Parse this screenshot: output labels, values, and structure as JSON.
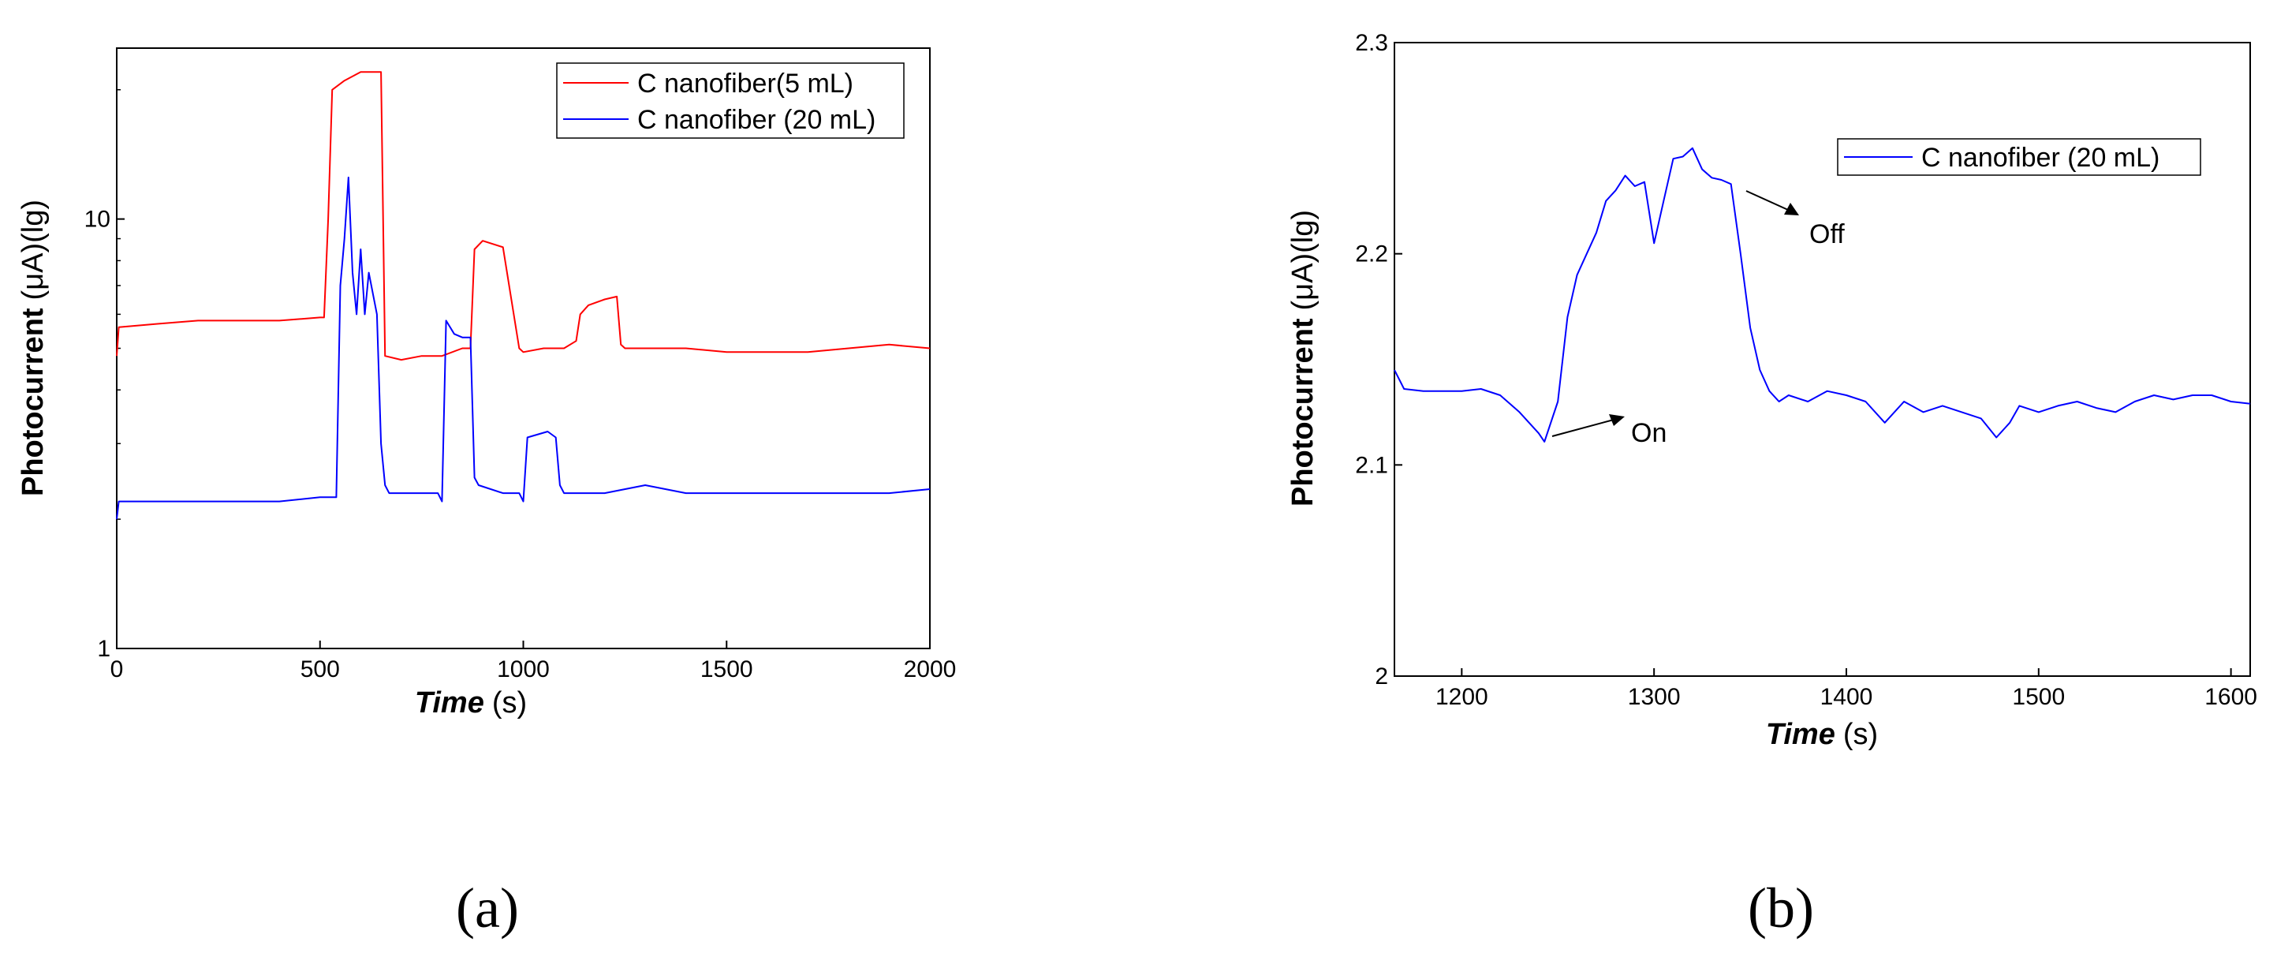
{
  "chart_data": [
    {
      "type": "line",
      "panel_label": "(a)",
      "xlabel": "Time",
      "xunit": "(s)",
      "ylabel": "Photocurrent",
      "yunit": "(μA)(lg)",
      "xlim": [
        0,
        2000
      ],
      "ylim": [
        1,
        25
      ],
      "log_y": true,
      "x_ticks": [
        0,
        500,
        1000,
        1500,
        2000
      ],
      "x_tick_labels": [
        "0",
        "500",
        "1000",
        "1500",
        "2000"
      ],
      "y_ticks": [
        1,
        10
      ],
      "y_tick_labels": [
        "1",
        "10"
      ],
      "legend": "top-right",
      "series": [
        {
          "name": "C nanofiber(5 mL)",
          "color": "#ff0000",
          "x": [
            0,
            5,
            100,
            200,
            300,
            400,
            500,
            510,
            520,
            530,
            560,
            600,
            650,
            660,
            700,
            750,
            800,
            850,
            870,
            880,
            900,
            950,
            990,
            1000,
            1050,
            1100,
            1130,
            1140,
            1160,
            1200,
            1230,
            1240,
            1250,
            1300,
            1400,
            1500,
            1600,
            1700,
            1800,
            1900,
            2000
          ],
          "y": [
            4.8,
            5.6,
            5.7,
            5.8,
            5.8,
            5.8,
            5.9,
            5.9,
            10,
            20,
            21,
            22,
            22,
            4.8,
            4.7,
            4.8,
            4.8,
            5.0,
            5.0,
            8.5,
            8.9,
            8.6,
            5.0,
            4.9,
            5.0,
            5.0,
            5.2,
            6.0,
            6.3,
            6.5,
            6.6,
            5.1,
            5.0,
            5.0,
            5.0,
            4.9,
            4.9,
            4.9,
            5.0,
            5.1,
            5.0
          ]
        },
        {
          "name": "C nanofiber (20 mL)",
          "color": "#0000ff",
          "x": [
            0,
            5,
            100,
            200,
            300,
            400,
            500,
            540,
            550,
            560,
            570,
            580,
            590,
            600,
            610,
            620,
            640,
            650,
            660,
            670,
            700,
            750,
            790,
            800,
            810,
            830,
            850,
            870,
            880,
            890,
            950,
            990,
            1000,
            1010,
            1060,
            1080,
            1090,
            1100,
            1200,
            1300,
            1400,
            1500,
            1600,
            1700,
            1800,
            1900,
            2000
          ],
          "y": [
            2.0,
            2.2,
            2.2,
            2.2,
            2.2,
            2.2,
            2.25,
            2.25,
            7.0,
            9.0,
            12.5,
            7.5,
            6.0,
            8.5,
            6.0,
            7.5,
            6.0,
            3.0,
            2.4,
            2.3,
            2.3,
            2.3,
            2.3,
            2.2,
            5.8,
            5.4,
            5.3,
            5.3,
            2.5,
            2.4,
            2.3,
            2.3,
            2.2,
            3.1,
            3.2,
            3.1,
            2.4,
            2.3,
            2.3,
            2.4,
            2.3,
            2.3,
            2.3,
            2.3,
            2.3,
            2.3,
            2.35
          ]
        }
      ]
    },
    {
      "type": "line",
      "panel_label": "(b)",
      "xlabel": "Time",
      "xunit": "(s)",
      "ylabel": "Photocurrent",
      "yunit": "(μA)(lg)",
      "xlim": [
        1165,
        1610
      ],
      "ylim": [
        2.0,
        2.3
      ],
      "x_ticks": [
        1200,
        1300,
        1400,
        1500,
        1600
      ],
      "x_tick_labels": [
        "1200",
        "1300",
        "1400",
        "1500",
        "1600"
      ],
      "y_ticks": [
        2.0,
        2.1,
        2.2,
        2.3
      ],
      "y_tick_labels": [
        "2",
        "2.1",
        "2.2",
        "2.3"
      ],
      "legend": "top-right",
      "annotations": [
        {
          "text": "On",
          "x": 1245,
          "y": 2.111
        },
        {
          "text": "Off",
          "x": 1345,
          "y": 2.225
        }
      ],
      "series": [
        {
          "name": "C nanofiber (20 mL)",
          "color": "#0000ff",
          "x": [
            1165,
            1170,
            1180,
            1190,
            1200,
            1210,
            1220,
            1230,
            1240,
            1243,
            1250,
            1255,
            1260,
            1265,
            1270,
            1275,
            1280,
            1285,
            1290,
            1295,
            1300,
            1305,
            1310,
            1315,
            1320,
            1325,
            1330,
            1335,
            1340,
            1345,
            1350,
            1355,
            1360,
            1365,
            1370,
            1380,
            1390,
            1400,
            1410,
            1420,
            1430,
            1440,
            1450,
            1460,
            1470,
            1478,
            1485,
            1490,
            1500,
            1510,
            1520,
            1530,
            1540,
            1550,
            1560,
            1570,
            1580,
            1590,
            1600,
            1610
          ],
          "y": [
            2.145,
            2.136,
            2.135,
            2.135,
            2.135,
            2.136,
            2.133,
            2.125,
            2.115,
            2.111,
            2.13,
            2.17,
            2.19,
            2.2,
            2.21,
            2.225,
            2.23,
            2.237,
            2.232,
            2.234,
            2.205,
            2.225,
            2.245,
            2.246,
            2.25,
            2.24,
            2.236,
            2.235,
            2.233,
            2.2,
            2.165,
            2.145,
            2.135,
            2.13,
            2.133,
            2.13,
            2.135,
            2.133,
            2.13,
            2.12,
            2.13,
            2.125,
            2.128,
            2.125,
            2.122,
            2.113,
            2.12,
            2.128,
            2.125,
            2.128,
            2.13,
            2.127,
            2.125,
            2.13,
            2.133,
            2.131,
            2.133,
            2.133,
            2.13,
            2.129
          ]
        }
      ]
    }
  ]
}
